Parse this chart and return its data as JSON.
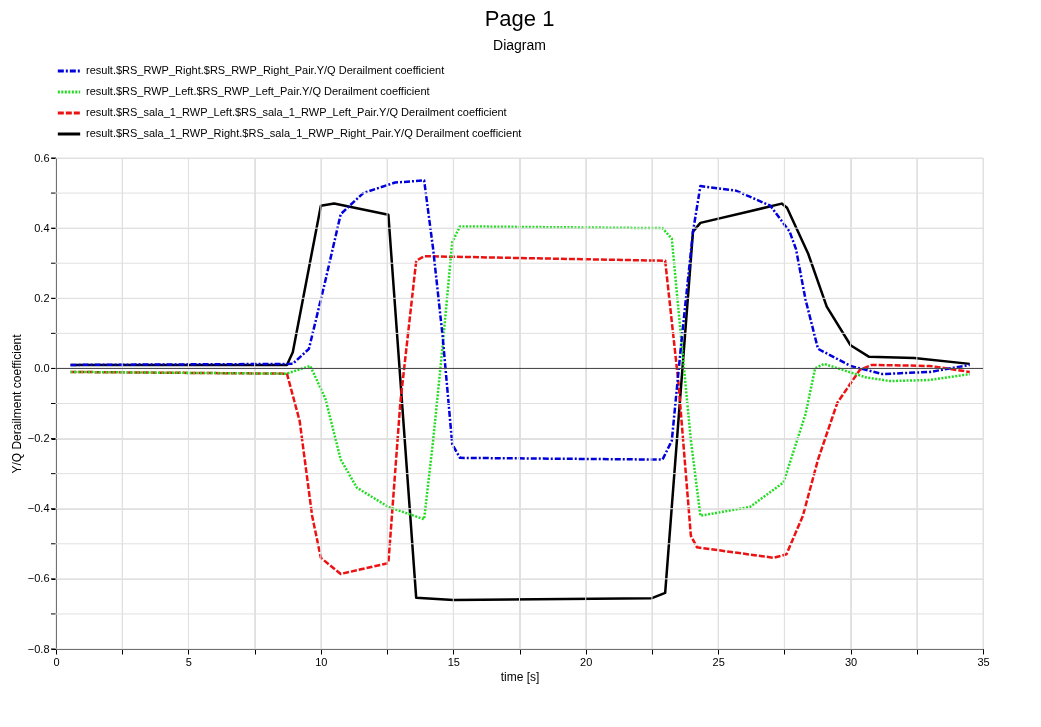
{
  "chart_data": {
    "type": "line",
    "title": "Page 1",
    "subtitle": "Diagram",
    "xlabel": "time [s]",
    "ylabel": "Y/Q Derailment coefficient",
    "xlim": [
      0,
      35
    ],
    "ylim": [
      -0.8,
      0.6
    ],
    "xticks": [
      0,
      {
        "value": 2.5,
        "label": null
      },
      5,
      {
        "value": 7.5,
        "label": null
      },
      10,
      {
        "value": 12.5,
        "label": null
      },
      15,
      {
        "value": 17.5,
        "label": null
      },
      20,
      {
        "value": 22.5,
        "label": null
      },
      25,
      {
        "value": 27.5,
        "label": null
      },
      30,
      {
        "value": 32.5,
        "label": null
      },
      35
    ],
    "yticks": [
      -0.8,
      {
        "value": -0.7,
        "label": null
      },
      -0.6,
      {
        "value": -0.5,
        "label": null
      },
      -0.4,
      {
        "value": -0.3,
        "label": null
      },
      -0.2,
      {
        "value": -0.1,
        "label": null
      },
      {
        "value": 0.0,
        "label": "0.0"
      },
      {
        "value": 0.1,
        "label": null
      },
      0.2,
      {
        "value": 0.3,
        "label": null
      },
      0.4,
      {
        "value": 0.5,
        "label": null
      },
      0.6
    ],
    "grid": true,
    "legend": "top",
    "marker": "none",
    "ref_lines": [
      {
        "axis": "y",
        "value": 0,
        "color": "#404040"
      }
    ],
    "series": [
      {
        "name": "result.$RS_RWP_Right.$RS_RWP_Right_Pair.Y/Q Derailment coefficient",
        "color": "#0000dd",
        "line_style": "dashdot",
        "x": [
          0.55,
          8.94,
          9.55,
          10.17,
          10.75,
          11.6,
          12.8,
          13.9,
          14.24,
          14.6,
          14.96,
          15.25,
          22.9,
          23.25,
          23.6,
          24.05,
          24.33,
          25.67,
          26.97,
          27.7,
          27.94,
          28.3,
          28.77,
          30.0,
          31.2,
          33.0,
          34.5
        ],
        "values": [
          0.01,
          0.013,
          0.056,
          0.25,
          0.44,
          0.5,
          0.53,
          0.536,
          0.34,
          0.09,
          -0.216,
          -0.255,
          -0.26,
          -0.206,
          0.066,
          0.39,
          0.52,
          0.507,
          0.464,
          0.39,
          0.34,
          0.196,
          0.056,
          0.007,
          -0.016,
          -0.01,
          0.01
        ]
      },
      {
        "name": "result.$RS_RWP_Left.$RS_RWP_Left_Pair.Y/Q Derailment coefficient",
        "color": "#22dd22",
        "line_style": "dotted",
        "x": [
          0.55,
          8.7,
          9.6,
          10.17,
          10.75,
          11.36,
          12.55,
          13.9,
          14.24,
          14.6,
          14.96,
          15.25,
          22.9,
          23.25,
          23.6,
          23.97,
          24.33,
          26.2,
          27.47,
          28.3,
          28.66,
          29.0,
          30.6,
          31.5,
          33.0,
          34.5
        ],
        "values": [
          -0.01,
          -0.015,
          0.007,
          -0.086,
          -0.26,
          -0.34,
          -0.395,
          -0.43,
          -0.205,
          0.066,
          0.36,
          0.405,
          0.4,
          0.37,
          0.088,
          -0.205,
          -0.42,
          -0.395,
          -0.325,
          -0.13,
          0.0,
          0.013,
          -0.026,
          -0.036,
          -0.033,
          -0.016
        ]
      },
      {
        "name": "result.$RS_sala_1_RWP_Left.$RS_sala_1_RWP_Left_Pair.Y/Q Derailment coefficient",
        "color": "#ee1111",
        "line_style": "dashed",
        "x": [
          0.55,
          8.72,
          9.2,
          9.67,
          10.0,
          10.75,
          12.55,
          13.0,
          13.6,
          13.9,
          23.0,
          23.5,
          23.97,
          24.2,
          27.1,
          27.58,
          28.2,
          28.77,
          29.5,
          30.35,
          30.8,
          33.0,
          34.5
        ],
        "values": [
          -0.01,
          -0.015,
          -0.15,
          -0.42,
          -0.54,
          -0.586,
          -0.555,
          -0.098,
          0.307,
          0.32,
          0.307,
          -0.04,
          -0.477,
          -0.51,
          -0.54,
          -0.53,
          -0.42,
          -0.26,
          -0.098,
          -0.004,
          0.01,
          0.007,
          -0.01
        ]
      },
      {
        "name": "result.$RS_sala_1_RWP_Right.$RS_sala_1_RWP_Right_Pair.Y/Q Derailment coefficient",
        "color": "#000000",
        "line_style": "solid",
        "x": [
          0.55,
          8.72,
          8.94,
          10.0,
          10.5,
          12.55,
          13.6,
          15.0,
          22.5,
          23.0,
          24.05,
          24.33,
          26.2,
          27.4,
          27.6,
          28.4,
          29.1,
          30.0,
          30.7,
          32.4,
          34.5
        ],
        "values": [
          0.01,
          0.01,
          0.046,
          0.464,
          0.47,
          0.438,
          -0.654,
          -0.66,
          -0.655,
          -0.64,
          0.39,
          0.415,
          0.448,
          0.47,
          0.458,
          0.327,
          0.176,
          0.066,
          0.033,
          0.03,
          0.013
        ]
      }
    ]
  }
}
